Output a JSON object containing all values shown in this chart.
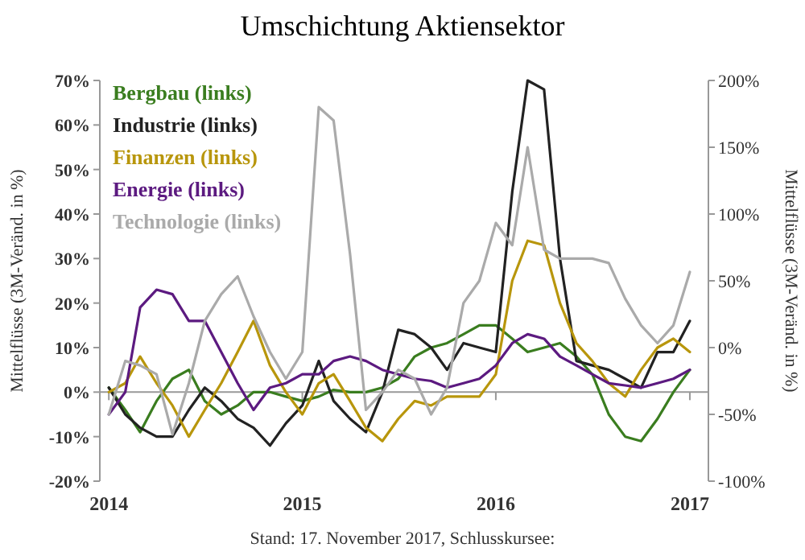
{
  "chart_data": {
    "type": "line",
    "title": "Umschichtung Aktiensektor",
    "ylabel": "Mittelflüsse (3M-Veränd. in %)",
    "y2label": "Mittelflüsse (3M-Veränd. in %)",
    "x": [
      "2014-01",
      "2014-02",
      "2014-03",
      "2014-04",
      "2014-05",
      "2014-06",
      "2014-07",
      "2014-08",
      "2014-09",
      "2014-10",
      "2014-11",
      "2014-12",
      "2015-01",
      "2015-02",
      "2015-03",
      "2015-04",
      "2015-05",
      "2015-06",
      "2015-07",
      "2015-08",
      "2015-09",
      "2015-10",
      "2015-11",
      "2015-12",
      "2016-01",
      "2016-02",
      "2016-03",
      "2016-04",
      "2016-05",
      "2016-06",
      "2016-07",
      "2016-08",
      "2016-09",
      "2016-10",
      "2016-11",
      "2016-12",
      "2017-01"
    ],
    "series": [
      {
        "name": "Bergbau (links)",
        "color": "#3a7d1f",
        "values": [
          1,
          -4,
          -9,
          -2,
          3,
          5,
          -2,
          -5,
          -3,
          0,
          0,
          -1,
          -2,
          -1,
          0.5,
          0,
          0,
          1,
          3,
          8,
          10,
          11,
          13,
          15,
          15,
          12,
          9,
          10,
          11,
          8,
          4,
          -5,
          -10,
          -11,
          -6,
          0,
          5
        ]
      },
      {
        "name": "Industrie (links)",
        "color": "#222222",
        "values": [
          1,
          -5,
          -8,
          -10,
          -10,
          -4,
          1,
          -2,
          -6,
          -8,
          -12,
          -7,
          -3,
          7,
          -2,
          -6,
          -9,
          0,
          14,
          13,
          10,
          5,
          11,
          10,
          9,
          45,
          70,
          68,
          30,
          7,
          6,
          5,
          3,
          1,
          9,
          9,
          16
        ]
      },
      {
        "name": "Finanzen (links)",
        "color": "#b8960c",
        "values": [
          0,
          2,
          8,
          2,
          -3,
          -10,
          -4,
          2,
          9,
          16,
          6,
          0,
          -5,
          2,
          4,
          -2,
          -8,
          -11,
          -6,
          -2,
          -3,
          -1,
          -1,
          -1,
          4,
          25,
          34,
          33,
          20,
          11,
          7,
          2,
          -1,
          5,
          10,
          12,
          9
        ]
      },
      {
        "name": "Energie (links)",
        "color": "#5c1a80",
        "values": [
          -5,
          0,
          19,
          23,
          22,
          16,
          16,
          9,
          2,
          -4,
          1,
          2,
          4,
          4,
          7,
          8,
          7,
          5,
          4,
          3,
          2.5,
          1,
          2,
          3,
          6,
          11,
          13,
          12,
          8,
          6,
          4,
          2,
          1.5,
          1,
          2,
          3,
          5
        ]
      },
      {
        "name": "Technologie (links)",
        "color": "#aaaaaa",
        "values": [
          -5,
          7,
          6,
          4,
          -9.5,
          2,
          16,
          22,
          26,
          17,
          9,
          3,
          9,
          64,
          61,
          31,
          -4,
          0,
          5,
          3,
          -5,
          1,
          20,
          25,
          38,
          33,
          55,
          32,
          30,
          30,
          30,
          29,
          21,
          15,
          11,
          15,
          27
        ]
      }
    ],
    "xlim": [
      "2013-12-15",
      "2017-02-05"
    ],
    "xticks": [
      {
        "value": "2014-01",
        "label": "2014"
      },
      {
        "value": "2015-01",
        "label": "2015"
      },
      {
        "value": "2016-01",
        "label": "2016"
      },
      {
        "value": "2017-01",
        "label": "2017"
      }
    ],
    "ylim": [
      -20,
      70
    ],
    "yticks": [
      {
        "value": -20,
        "label": "-20%"
      },
      {
        "value": -10,
        "label": "-10%"
      },
      {
        "value": 0,
        "label": "0%"
      },
      {
        "value": 10,
        "label": "10%"
      },
      {
        "value": 20,
        "label": "20%"
      },
      {
        "value": 30,
        "label": "30%"
      },
      {
        "value": 40,
        "label": "40%"
      },
      {
        "value": 50,
        "label": "50%"
      },
      {
        "value": 60,
        "label": "60%"
      },
      {
        "value": 70,
        "label": "70%"
      }
    ],
    "y2lim": [
      -100,
      200
    ],
    "y2ticks": [
      {
        "value": -100,
        "label": "-100%"
      },
      {
        "value": -50,
        "label": "-50%"
      },
      {
        "value": 0,
        "label": "0%"
      },
      {
        "value": 50,
        "label": "50%"
      },
      {
        "value": 100,
        "label": "100%"
      },
      {
        "value": 150,
        "label": "150%"
      },
      {
        "value": 200,
        "label": "200%"
      }
    ],
    "legend": "top left",
    "annotations": [
      "Stand: 17. November 2017, Schlusskursee:"
    ]
  }
}
